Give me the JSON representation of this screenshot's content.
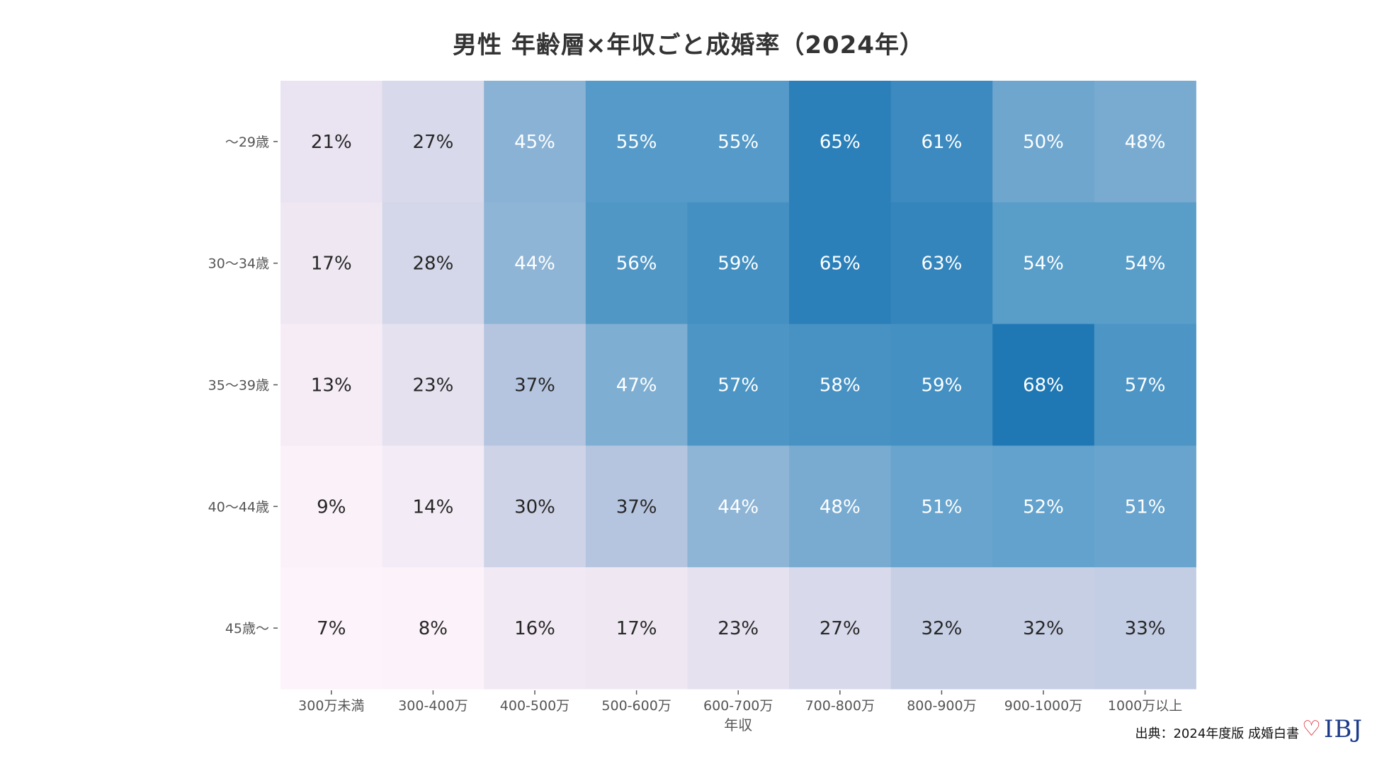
{
  "chart_data": {
    "type": "heatmap",
    "title": "男性 年齢層×年収ごと成婚率（2024年）",
    "xlabel": "年収",
    "ylabel": "",
    "x_categories": [
      "300万未満",
      "300-400万",
      "400-500万",
      "500-600万",
      "600-700万",
      "700-800万",
      "800-900万",
      "900-1000万",
      "1000万以上"
    ],
    "y_categories": [
      "～29歳",
      "30～34歳",
      "35～39歳",
      "40～44歳",
      "45歳～"
    ],
    "values": [
      [
        21,
        27,
        45,
        55,
        55,
        65,
        61,
        50,
        48
      ],
      [
        17,
        28,
        44,
        56,
        59,
        65,
        63,
        54,
        54
      ],
      [
        13,
        23,
        37,
        47,
        57,
        58,
        59,
        68,
        57
      ],
      [
        9,
        14,
        30,
        37,
        44,
        48,
        51,
        52,
        51
      ],
      [
        7,
        8,
        16,
        17,
        23,
        27,
        32,
        32,
        33
      ]
    ],
    "value_format": "percent",
    "colormap": "PuBu",
    "vmin": 7,
    "vmax": 68
  },
  "footer": {
    "source": "出典：2024年度版 成婚白書",
    "logo_text": "IBJ"
  }
}
